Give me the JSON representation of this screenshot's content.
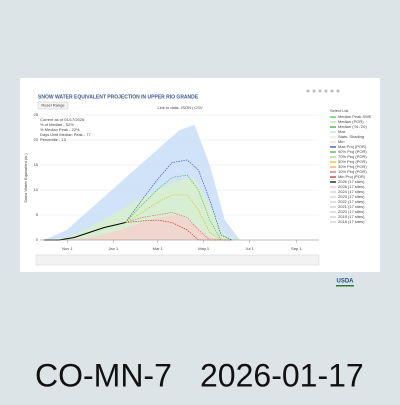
{
  "chart_data": {
    "type": "line",
    "title": "SNOW WATER EQUIVALENT PROJECTION IN UPPER RIO GRANDE",
    "button": "Reset Range",
    "link_text": "Link to data: JSON | CSV",
    "y_label": "Snow Water Equivalent (in.)",
    "legend_title": "Select List",
    "annotation": [
      "Current as of 01/17/2026:",
      "% of Median - 52%",
      "% Median Peak - 22%",
      "Days Until Median Peak - 77",
      "Percentile - 13"
    ],
    "xlim": [
      0,
      365
    ],
    "xticks": [
      {
        "value": 31,
        "label": "Nov 1"
      },
      {
        "value": 92,
        "label": "Jan 1"
      },
      {
        "value": 151,
        "label": "Mar 1"
      },
      {
        "value": 212,
        "label": "May 1"
      },
      {
        "value": 273,
        "label": "Jul 1"
      },
      {
        "value": 335,
        "label": "Sep 1"
      }
    ],
    "ylim": [
      0,
      25
    ],
    "yticks": [
      0,
      5,
      10,
      15,
      20,
      25
    ],
    "grid": true,
    "series": [
      {
        "name": "Median Peak SWE",
        "color": "#33cc33"
      },
      {
        "name": "Median (POR)",
        "color": "#b0e0a0"
      },
      {
        "name": "Median ('91-'20)",
        "color": "#2ca02c"
      },
      {
        "name": "Max",
        "color": "#c6dcf7",
        "style": "area",
        "x": [
          0,
          30,
          60,
          90,
          120,
          150,
          180,
          200,
          220,
          240,
          260,
          300,
          365
        ],
        "values": [
          0,
          2,
          6,
          10,
          14,
          18,
          22,
          23,
          15,
          4,
          0,
          0,
          0
        ]
      },
      {
        "name": "Stats. Shading",
        "color": "#d8f0c8",
        "style": "area",
        "x": [
          0,
          30,
          60,
          90,
          120,
          150,
          180,
          200,
          220,
          240,
          260,
          300,
          365
        ],
        "values": [
          0,
          0.5,
          2.5,
          5,
          7.5,
          10,
          12,
          12.5,
          7,
          1,
          0,
          0,
          0
        ]
      },
      {
        "name": "Min",
        "color": "#f8d0d0",
        "style": "area",
        "x": [
          0,
          30,
          60,
          90,
          120,
          150,
          180,
          200,
          220,
          240,
          260,
          300,
          365
        ],
        "values": [
          0,
          0,
          0.5,
          1.5,
          3,
          4.5,
          5,
          3,
          0.5,
          0,
          0,
          0,
          0
        ]
      },
      {
        "name": "Max Proj (POR)",
        "color": "#1f3fb4",
        "style": "dash",
        "x": [
          108,
          130,
          150,
          170,
          190,
          205,
          220,
          235,
          250
        ],
        "values": [
          3.5,
          8,
          12,
          15.5,
          16,
          14,
          8,
          1,
          0
        ]
      },
      {
        "name": "90% Proj (POR)",
        "color": "#3cb44b",
        "style": "dash",
        "x": [
          108,
          130,
          150,
          170,
          190,
          205,
          220,
          235,
          250
        ],
        "values": [
          3.5,
          7,
          10,
          12.5,
          13,
          10,
          4,
          0,
          0
        ]
      },
      {
        "name": "70% Proj (POR)",
        "color": "#8fd18f"
      },
      {
        "name": "50% Proj (POR)",
        "color": "#d4c000",
        "style": "dash",
        "x": [
          108,
          130,
          150,
          170,
          190,
          205,
          220,
          235,
          250
        ],
        "values": [
          3.5,
          5.5,
          7.5,
          9,
          9,
          6,
          1.5,
          0,
          0
        ]
      },
      {
        "name": "30% Proj (POR)",
        "color": "#f0a040"
      },
      {
        "name": "10% Proj (POR)",
        "color": "#e06060",
        "style": "dash",
        "x": [
          108,
          130,
          150,
          170,
          190,
          205,
          220,
          235,
          250
        ],
        "values": [
          3.5,
          4.5,
          5,
          5.5,
          4.5,
          2,
          0,
          0,
          0
        ]
      },
      {
        "name": "Min Proj (POR)",
        "color": "#c02020",
        "style": "dash",
        "x": [
          108,
          130,
          150,
          170,
          190,
          205,
          220,
          235,
          250
        ],
        "values": [
          3.5,
          3.8,
          4,
          3.5,
          2,
          0,
          0,
          0,
          0
        ]
      },
      {
        "name": "2026 (17 sites)",
        "color": "#000000",
        "style": "solid",
        "x": [
          0,
          20,
          40,
          60,
          80,
          100,
          108
        ],
        "values": [
          0,
          0,
          0.5,
          1.5,
          2.5,
          3.2,
          3.5
        ]
      },
      {
        "name": "2025 (17 sites)",
        "color": "#cccccc"
      },
      {
        "name": "2024 (17 sites)",
        "color": "#cccccc"
      },
      {
        "name": "2023 (17 sites)",
        "color": "#cccccc"
      },
      {
        "name": "2022 (17 sites)",
        "color": "#cccccc"
      },
      {
        "name": "2021 (17 sites)",
        "color": "#cccccc"
      },
      {
        "name": "2020 (17 sites)",
        "color": "#cccccc"
      },
      {
        "name": "2019 (17 sites)",
        "color": "#cccccc"
      },
      {
        "name": "2018 (17 sites)",
        "color": "#cccccc"
      }
    ]
  },
  "caption": {
    "site": "CO-MN-7",
    "date": "2026-01-17"
  }
}
